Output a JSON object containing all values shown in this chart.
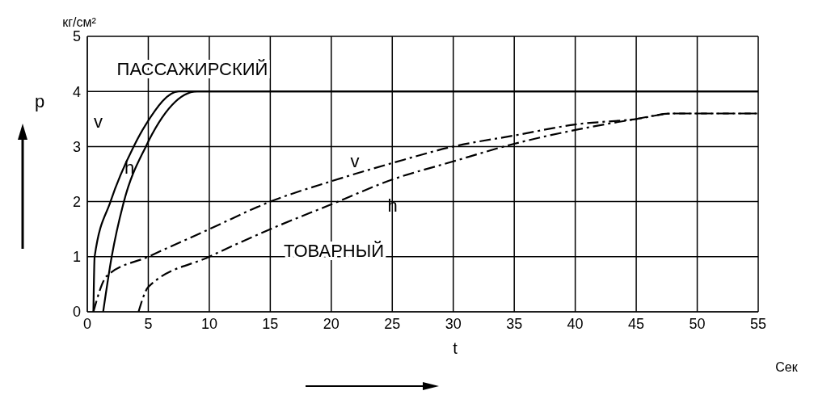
{
  "chart_data": {
    "type": "line",
    "xlabel": "t",
    "ylabel": "p",
    "xlim": [
      0,
      55
    ],
    "ylim": [
      0,
      5
    ],
    "xticks": [
      0,
      5,
      10,
      15,
      20,
      25,
      30,
      35,
      40,
      45,
      50,
      55
    ],
    "yticks": [
      0,
      1,
      2,
      3,
      4,
      5
    ],
    "grid": true,
    "legend": false,
    "marker": "none",
    "annotations": [
      "ПАССАЖИРСКИЙ",
      "ТОВАРНЫЙ",
      "кг/см²",
      "Сек"
    ],
    "series": [
      {
        "name": "v",
        "color": "#000000",
        "line_style": "solid",
        "x": [
          0.5,
          0.6,
          1.9,
          3.8,
          4.8,
          7.5,
          55
        ],
        "values": [
          0,
          1,
          2,
          3,
          3.4,
          4,
          4
        ]
      },
      {
        "name": "h",
        "color": "#000000",
        "line_style": "solid",
        "x": [
          1.3,
          2.0,
          3.0,
          4.8,
          9.0,
          55
        ],
        "values": [
          0,
          1,
          2,
          3,
          4,
          4
        ]
      },
      {
        "name": "v",
        "color": "#000000",
        "line_style": "dashed",
        "x": [
          0.5,
          1.6,
          5,
          10,
          15,
          20,
          25,
          30,
          35,
          40,
          45,
          48,
          55
        ],
        "values": [
          0,
          0.65,
          1,
          1.5,
          2,
          2.37,
          2.7,
          3,
          3.2,
          3.4,
          3.5,
          3.6,
          3.6
        ]
      },
      {
        "name": "h",
        "color": "#000000",
        "line_style": "dashed",
        "x": [
          4.2,
          5,
          10,
          15,
          20,
          25,
          30,
          35,
          40,
          45,
          48,
          55
        ],
        "values": [
          0,
          0.45,
          1,
          1.5,
          1.95,
          2.4,
          2.73,
          3.05,
          3.3,
          3.5,
          3.6,
          3.6
        ]
      }
    ]
  }
}
